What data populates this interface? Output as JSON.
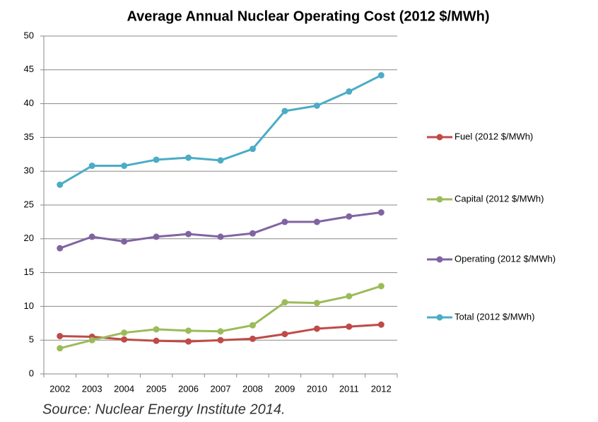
{
  "chart_data": {
    "type": "line",
    "title": "Average Annual Nuclear Operating Cost (2012 $/MWh)",
    "source": "Source: Nuclear Energy Institute 2014.",
    "categories": [
      "2002",
      "2003",
      "2004",
      "2005",
      "2006",
      "2007",
      "2008",
      "2009",
      "2010",
      "2011",
      "2012"
    ],
    "series": [
      {
        "name": "Fuel (2012 $/MWh)",
        "color": "#be4b48",
        "values": [
          5.6,
          5.5,
          5.1,
          4.9,
          4.8,
          5.0,
          5.2,
          5.9,
          6.7,
          7.0,
          7.3
        ]
      },
      {
        "name": "Capital (2012 $/MWh)",
        "color": "#9bbb59",
        "values": [
          3.8,
          5.0,
          6.1,
          6.6,
          6.4,
          6.3,
          7.2,
          10.6,
          10.5,
          11.5,
          13.0
        ]
      },
      {
        "name": "Operating (2012 $/MWh)",
        "color": "#8064a2",
        "values": [
          18.6,
          20.3,
          19.6,
          20.3,
          20.7,
          20.3,
          20.8,
          22.5,
          22.5,
          23.3,
          23.9
        ]
      },
      {
        "name": "Total (2012 $/MWh)",
        "color": "#4bacc6",
        "values": [
          28.0,
          30.8,
          30.8,
          31.7,
          32.0,
          31.6,
          33.3,
          38.9,
          39.7,
          41.8,
          44.2
        ]
      }
    ],
    "ylim": [
      0,
      50
    ],
    "yticks": [
      0,
      5,
      10,
      15,
      20,
      25,
      30,
      35,
      40,
      45,
      50
    ],
    "grid": true,
    "legend": "right"
  }
}
